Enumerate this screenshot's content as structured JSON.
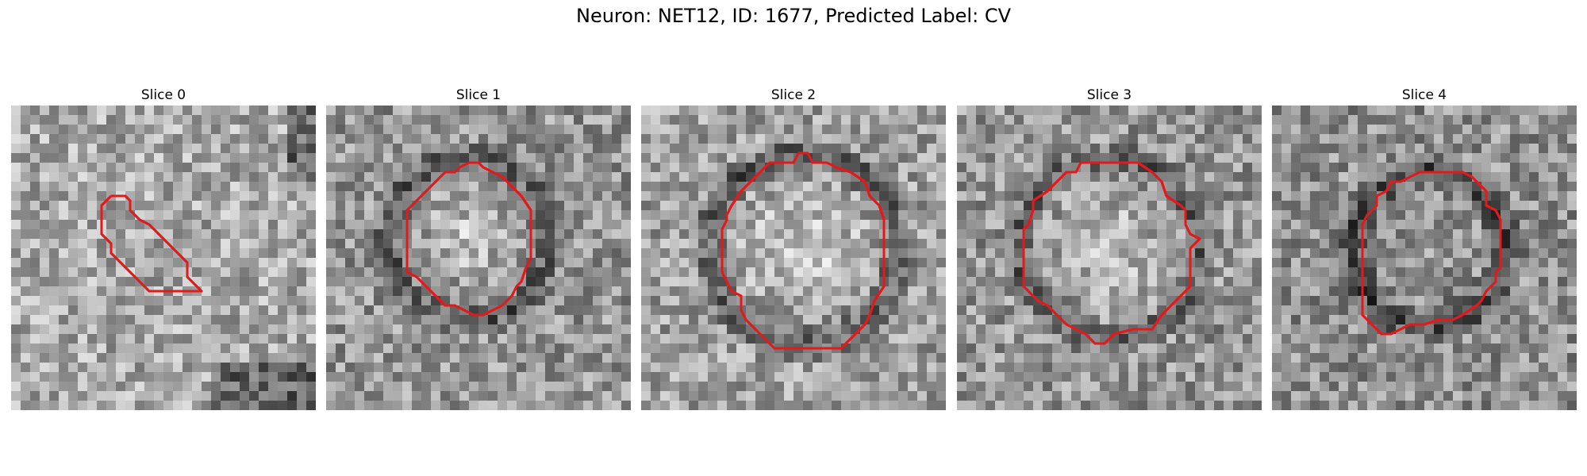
{
  "figure": {
    "title": "Neuron: NET12, ID: 1677, Predicted Label: CV",
    "contour_color": "#e31a1c"
  },
  "slices": [
    {
      "label": "Slice 0"
    },
    {
      "label": "Slice 1"
    },
    {
      "label": "Slice 2"
    },
    {
      "label": "Slice 3"
    },
    {
      "label": "Slice 4"
    }
  ]
}
